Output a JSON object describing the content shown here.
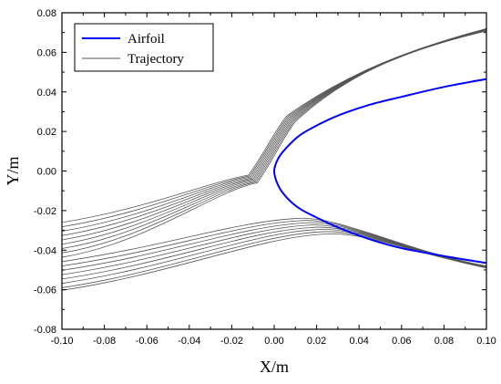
{
  "chart_data": {
    "type": "line",
    "xlabel": "X/m",
    "ylabel": "Y/m",
    "xlim": [
      -0.1,
      0.1
    ],
    "ylim": [
      -0.08,
      0.08
    ],
    "xticks": [
      "-0.10",
      "-0.08",
      "-0.06",
      "-0.04",
      "-0.02",
      "0.00",
      "0.02",
      "0.04",
      "0.06",
      "0.08",
      "0.10"
    ],
    "yticks": [
      "-0.08",
      "-0.06",
      "-0.04",
      "-0.02",
      "0.00",
      "0.02",
      "0.04",
      "0.06",
      "0.08"
    ],
    "grid": false,
    "legend": {
      "position": "top-left",
      "entries": [
        {
          "label": "Airfoil",
          "color": "#0000ff"
        },
        {
          "label": "Trajectory",
          "color": "#555555"
        }
      ]
    },
    "series": [
      {
        "name": "Airfoil",
        "color": "#0000ff",
        "x": [
          0.1,
          0.08,
          0.06,
          0.045,
          0.03,
          0.02,
          0.012,
          0.006,
          0.002,
          0.0,
          0.002,
          0.006,
          0.012,
          0.02,
          0.03,
          0.045,
          0.06,
          0.08,
          0.1
        ],
        "y": [
          0.0465,
          0.0425,
          0.0375,
          0.0335,
          0.028,
          0.023,
          0.018,
          0.012,
          0.0065,
          0.0,
          -0.0075,
          -0.0135,
          -0.019,
          -0.0235,
          -0.0285,
          -0.0345,
          -0.039,
          -0.043,
          -0.0465
        ]
      },
      {
        "name": "Trajectory",
        "color": "#555555",
        "start_y": [
          -0.026,
          -0.0282,
          -0.0304,
          -0.0326,
          -0.0348,
          -0.037,
          -0.0392,
          -0.0414,
          -0.0436,
          -0.0458,
          -0.048,
          -0.0502,
          -0.0524,
          -0.0546,
          -0.0568,
          -0.059,
          -0.0603
        ],
        "upper_exit": {
          "x": 0.1,
          "y": 0.072
        },
        "lower_exit": {
          "x": 0.1,
          "y": -0.049
        }
      }
    ]
  }
}
